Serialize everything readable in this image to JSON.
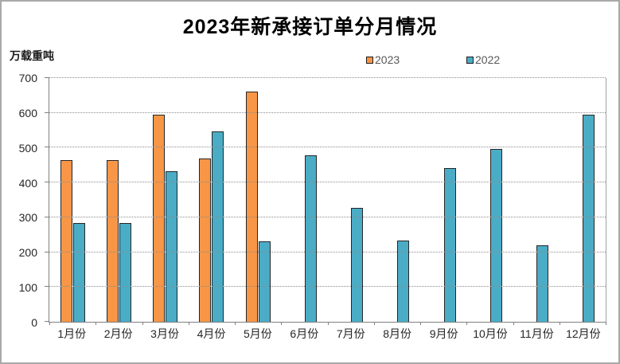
{
  "chart_data": {
    "type": "bar",
    "title": "2023年新承接订单分月情况",
    "unit_label": "万载重吨",
    "categories": [
      "1月份",
      "2月份",
      "3月份",
      "4月份",
      "5月份",
      "6月份",
      "7月份",
      "8月份",
      "9月份",
      "10月份",
      "11月份",
      "12月份"
    ],
    "series": [
      {
        "name": "2023",
        "color": "#F79646",
        "values": [
          462,
          463,
          594,
          467,
          659,
          null,
          null,
          null,
          null,
          null,
          null,
          null
        ]
      },
      {
        "name": "2022",
        "color": "#4BACC6",
        "values": [
          282,
          283,
          430,
          546,
          230,
          476,
          326,
          232,
          440,
          494,
          220,
          592
        ]
      }
    ],
    "ylim": [
      0,
      700
    ],
    "yticks": [
      0,
      100,
      200,
      300,
      400,
      500,
      600,
      700
    ],
    "grid": "horizontal-dotted",
    "legend_position": "top-center",
    "bar_border_color": "#262626",
    "gridline_color": "#8c8c8c",
    "axis_color": "#808080"
  }
}
